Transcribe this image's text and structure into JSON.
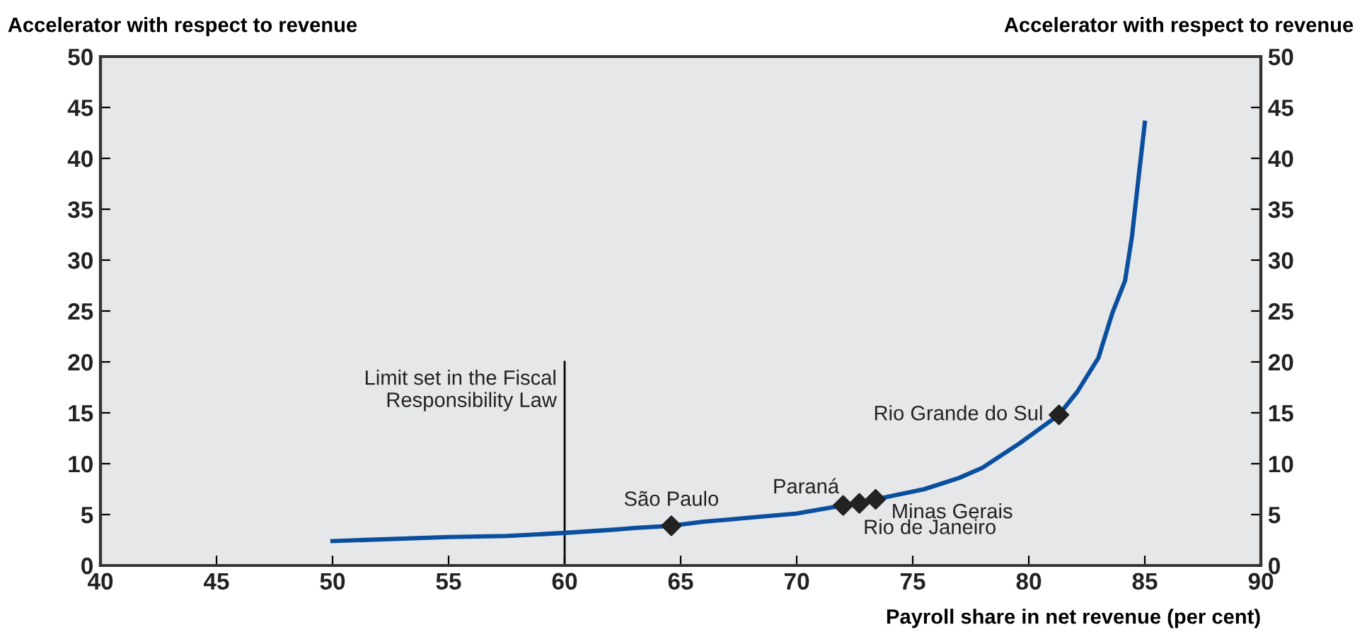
{
  "chart_data": {
    "type": "line",
    "xlabel": "Payroll share in net revenue (per cent)",
    "ylabel": "Accelerator with respect to revenue",
    "y2label": "Accelerator with respect to revenue",
    "xlim": [
      40,
      90
    ],
    "xticks": [
      40,
      45,
      50,
      55,
      60,
      65,
      70,
      75,
      80,
      85,
      90
    ],
    "ylim": [
      0,
      50
    ],
    "yticks": [
      0,
      5,
      10,
      15,
      20,
      25,
      30,
      35,
      40,
      45,
      50
    ],
    "y2lim": [
      0,
      50
    ],
    "y2ticks": [
      0,
      5,
      10,
      15,
      20,
      25,
      30,
      35,
      40,
      45,
      50
    ],
    "grid": false,
    "legend": false,
    "series": [
      {
        "color": "#0a4f9e",
        "marker": "none",
        "line_style": "solid",
        "x": [
          50,
          55,
          57.5,
          60,
          62,
          63.1,
          64.6,
          66,
          68,
          70,
          72,
          73.4,
          75.5,
          77,
          78,
          79.6,
          81.3,
          82.1,
          83,
          83.6,
          84.15,
          84.45,
          84.7,
          85
        ],
        "values": [
          2.4,
          2.8,
          2.9,
          3.2,
          3.5,
          3.7,
          3.9,
          4.3,
          4.7,
          5.1,
          5.9,
          6.5,
          7.5,
          8.6,
          9.6,
          12.0,
          14.8,
          17.1,
          20.4,
          24.8,
          28.0,
          32.4,
          37.5,
          43.5
        ]
      },
      {
        "type": "scatter",
        "color": "#222222",
        "marker": "diamond",
        "x": [
          64.6,
          72.0,
          72.7,
          73.4,
          81.3
        ],
        "values": [
          3.9,
          5.9,
          6.1,
          6.5,
          14.8
        ]
      }
    ],
    "ref_lines": [
      {
        "axis": "x",
        "value": 60,
        "label": "Limit set in the Fiscal\nResponsibility Law",
        "color": "#000000"
      }
    ],
    "annotations": [
      {
        "text": "São Paulo",
        "x": 64.6,
        "y": 3.9
      },
      {
        "text": "Paraná",
        "x": 72.0,
        "y": 5.9
      },
      {
        "text": "Rio de Janeiro",
        "x": 72.7,
        "y": 6.1
      },
      {
        "text": "Minas Gerais",
        "x": 73.4,
        "y": 6.5
      },
      {
        "text": "Rio Grande do Sul",
        "x": 81.3,
        "y": 14.8
      }
    ]
  }
}
